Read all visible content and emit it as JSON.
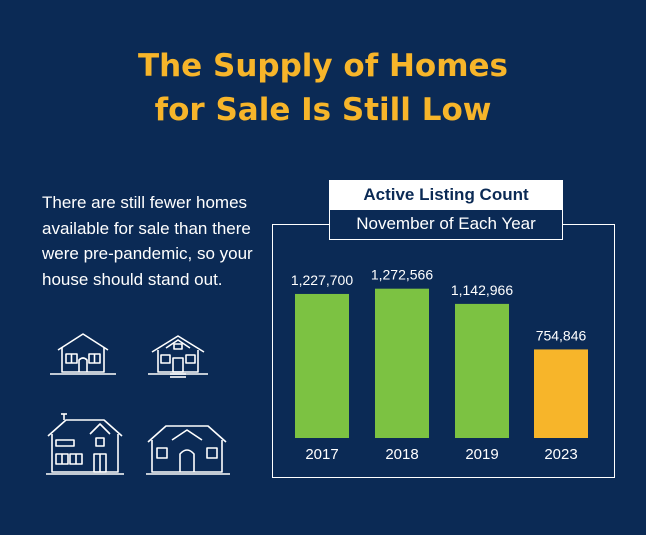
{
  "title": {
    "line1": "The Supply of Homes",
    "line2": "for Sale Is Still Low"
  },
  "body_text": "There are still fewer homes available for sale than there were pre-pandemic, so your house should stand out.",
  "colors": {
    "background": "#0b2a55",
    "title": "#f7b52a",
    "bar_green": "#7cc242",
    "bar_orange": "#f7b52a"
  },
  "icons": [
    "house-icon",
    "house-icon",
    "house-icon",
    "house-icon"
  ],
  "chart_data": {
    "type": "bar",
    "title": "Active Listing Count",
    "subtitle": "November of Each Year",
    "categories": [
      "2017",
      "2018",
      "2019",
      "2023"
    ],
    "values": [
      1227700,
      1272566,
      1142966,
      754846
    ],
    "value_labels": [
      "1,227,700",
      "1,272,566",
      "1,142,966",
      "754,846"
    ],
    "bar_colors": [
      "#7cc242",
      "#7cc242",
      "#7cc242",
      "#f7b52a"
    ],
    "ylim": [
      0,
      1500000
    ],
    "grid": false,
    "xlabel": "",
    "ylabel": ""
  }
}
